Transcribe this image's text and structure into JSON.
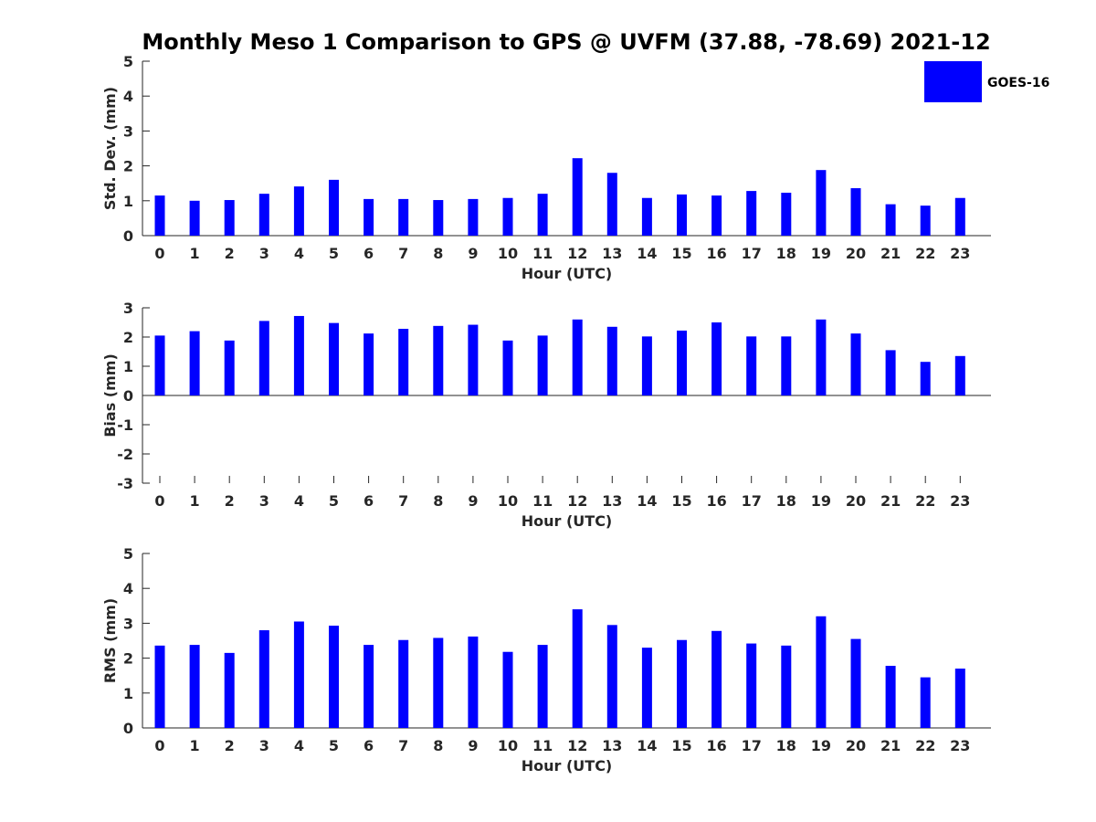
{
  "title": "Monthly Meso 1 Comparison to GPS @ UVFM (37.88, -78.69) 2021-12",
  "legend": {
    "label": "GOES-16",
    "color": "#0000ff",
    "position": "top-right"
  },
  "chart_data": [
    {
      "type": "bar",
      "title": "Monthly Meso 1 Comparison to GPS @ UVFM (37.88, -78.69) 2021-12",
      "xlabel": "Hour (UTC)",
      "ylabel": "Std. Dev. (mm)",
      "ylim": [
        0,
        5
      ],
      "yticks": [
        0,
        1,
        2,
        3,
        4,
        5
      ],
      "categories": [
        "0",
        "1",
        "2",
        "3",
        "4",
        "5",
        "6",
        "7",
        "8",
        "9",
        "10",
        "11",
        "12",
        "13",
        "14",
        "15",
        "16",
        "17",
        "18",
        "19",
        "20",
        "21",
        "22",
        "23"
      ],
      "series": [
        {
          "name": "GOES-16",
          "color": "#0000ff",
          "values": [
            1.15,
            1.0,
            1.02,
            1.2,
            1.41,
            1.6,
            1.05,
            1.05,
            1.02,
            1.05,
            1.08,
            1.2,
            2.22,
            1.8,
            1.08,
            1.18,
            1.15,
            1.28,
            1.23,
            1.88,
            1.36,
            0.9,
            0.86,
            1.08
          ]
        }
      ]
    },
    {
      "type": "bar",
      "title": "",
      "xlabel": "Hour (UTC)",
      "ylabel": "Bias (mm)",
      "ylim": [
        -3,
        3
      ],
      "yticks": [
        -3,
        -2,
        -1,
        0,
        1,
        2,
        3
      ],
      "categories": [
        "0",
        "1",
        "2",
        "3",
        "4",
        "5",
        "6",
        "7",
        "8",
        "9",
        "10",
        "11",
        "12",
        "13",
        "14",
        "15",
        "16",
        "17",
        "18",
        "19",
        "20",
        "21",
        "22",
        "23"
      ],
      "series": [
        {
          "name": "GOES-16",
          "color": "#0000ff",
          "values": [
            2.05,
            2.2,
            1.88,
            2.55,
            2.72,
            2.48,
            2.12,
            2.28,
            2.38,
            2.42,
            1.88,
            2.05,
            2.6,
            2.35,
            2.02,
            2.22,
            2.5,
            2.02,
            2.02,
            2.6,
            2.12,
            1.55,
            1.15,
            1.35
          ]
        }
      ]
    },
    {
      "type": "bar",
      "title": "",
      "xlabel": "Hour (UTC)",
      "ylabel": "RMS (mm)",
      "ylim": [
        0,
        5
      ],
      "yticks": [
        0,
        1,
        2,
        3,
        4,
        5
      ],
      "categories": [
        "0",
        "1",
        "2",
        "3",
        "4",
        "5",
        "6",
        "7",
        "8",
        "9",
        "10",
        "11",
        "12",
        "13",
        "14",
        "15",
        "16",
        "17",
        "18",
        "19",
        "20",
        "21",
        "22",
        "23"
      ],
      "series": [
        {
          "name": "GOES-16",
          "color": "#0000ff",
          "values": [
            2.36,
            2.38,
            2.15,
            2.8,
            3.05,
            2.93,
            2.38,
            2.52,
            2.58,
            2.62,
            2.18,
            2.38,
            3.4,
            2.95,
            2.3,
            2.52,
            2.78,
            2.42,
            2.36,
            3.2,
            2.55,
            1.78,
            1.45,
            1.7
          ]
        }
      ]
    }
  ]
}
